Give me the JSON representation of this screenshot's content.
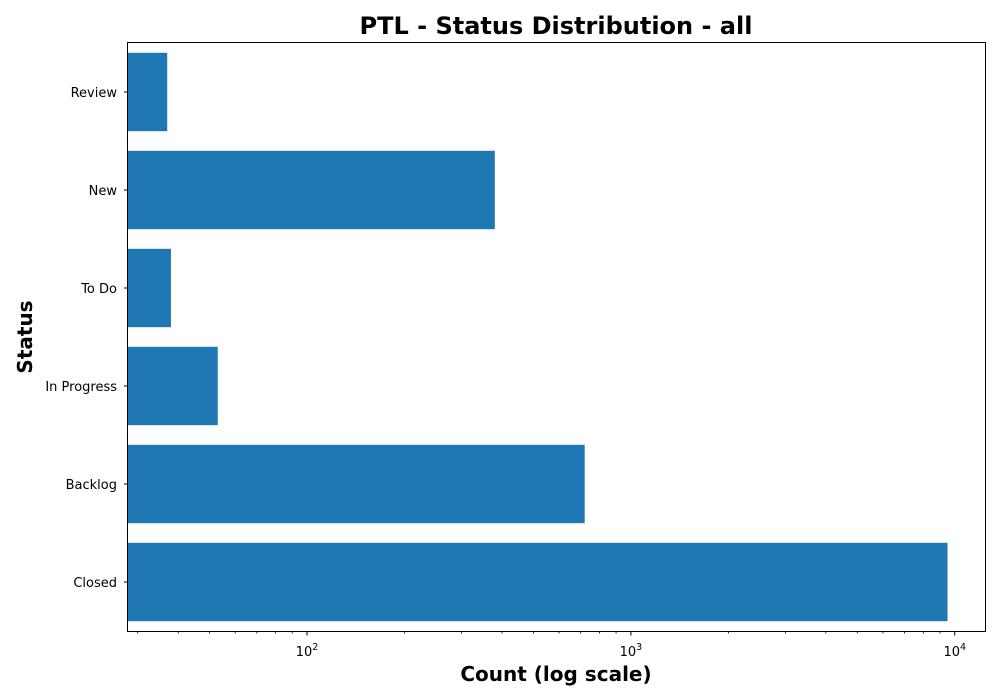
{
  "chart_data": {
    "type": "bar",
    "orientation": "horizontal",
    "title": "PTL - Status Distribution - all",
    "xlabel": "Count (log scale)",
    "ylabel": "Status",
    "x_scale": "log",
    "xlim": [
      28,
      12400
    ],
    "categories": [
      "Closed",
      "Backlog",
      "In Progress",
      "To Do",
      "New",
      "Review"
    ],
    "values": [
      9500,
      720,
      53,
      38,
      380,
      37
    ],
    "x_ticks": [
      {
        "value": 100,
        "base": "10",
        "exp": "2"
      },
      {
        "value": 1000,
        "base": "10",
        "exp": "3"
      },
      {
        "value": 10000,
        "base": "10",
        "exp": "4"
      }
    ],
    "bar_color": "#1f77b4",
    "grid": false,
    "legend": "none"
  }
}
